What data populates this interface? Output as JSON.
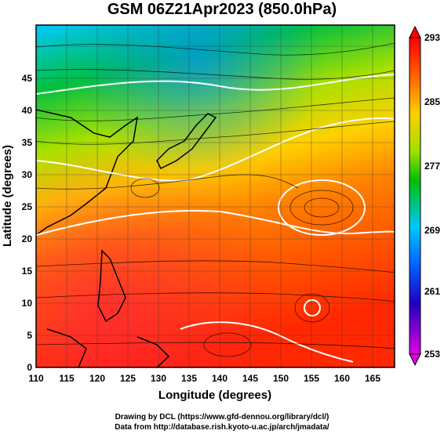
{
  "title": "GSM 06Z21Apr2023 (850.0hPa)",
  "credits": {
    "line1": "Drawing by DCL (https://www.gfd-dennou.org/library/dcl/)",
    "line2": "Data from http://database.rish.kyoto-u.ac.jp/arch/jmadata/"
  },
  "axes": {
    "xlabel": "Longitude (degrees)",
    "ylabel": "Latitude  (degrees)",
    "x_ticks": [
      "110",
      "115",
      "120",
      "125",
      "130",
      "135",
      "140",
      "145",
      "150",
      "155",
      "160",
      "165"
    ],
    "y_ticks": [
      "0",
      "5",
      "10",
      "15",
      "20",
      "25",
      "30",
      "35",
      "40",
      "45"
    ]
  },
  "colorbar": {
    "labels": [
      "293",
      "285",
      "277",
      "269",
      "261",
      "253"
    ]
  },
  "colors": {
    "cold": "#d000d0",
    "mid": "#00b000",
    "warm": "#ff2000"
  }
}
